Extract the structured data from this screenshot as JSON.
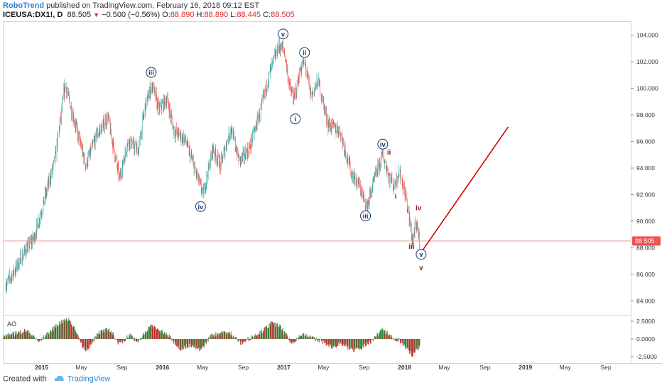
{
  "header": {
    "author": "RoboTrend",
    "published_text": "published on TradingView.com, February 16, 2018 09:12 EST",
    "symbol": "ICEUSA:DX1!, D",
    "last": "88.505",
    "change": "−0.500 (−0.56%)",
    "o_label": "O:",
    "o_value": "88.890",
    "h_label": "H:",
    "h_value": "88.890",
    "l_label": "L:",
    "l_value": "88.445",
    "c_label": "C:",
    "c_value": "88.505"
  },
  "footer": {
    "created_with": "Created with",
    "brand": "TradingView"
  },
  "colors": {
    "up": "#26a69a",
    "down": "#ef5350",
    "ao_up": "#2e8b3d",
    "ao_down": "#c62828",
    "projection": "#d00000",
    "wave_circle": "#1a3a6b",
    "wave_roman": "#8b1a1a",
    "price_label_bg": "#ef5350"
  },
  "chart_data": {
    "type": "candlestick",
    "symbol": "ICEUSA:DX1!",
    "interval": "D",
    "ylim": [
      83,
      105
    ],
    "y_ticks": [
      "84.000",
      "86.000",
      "88.000",
      "90.000",
      "92.000",
      "94.000",
      "96.000",
      "98.000",
      "100.000",
      "102.000",
      "104.000"
    ],
    "y_tick_values": [
      84,
      86,
      88,
      90,
      92,
      94,
      96,
      98,
      100,
      102,
      104
    ],
    "x_ticks": [
      "2015",
      "May",
      "Sep",
      "2016",
      "May",
      "Sep",
      "2017",
      "May",
      "Sep",
      "2018",
      "May",
      "Sep",
      "2019",
      "May",
      "Sep"
    ],
    "x_tick_values": [
      "2015-01-01",
      "2015-05-01",
      "2015-09-01",
      "2016-01-01",
      "2016-05-01",
      "2016-09-01",
      "2017-01-01",
      "2017-05-01",
      "2017-09-01",
      "2018-01-01",
      "2018-05-01",
      "2018-09-01",
      "2019-01-01",
      "2019-05-01",
      "2019-09-01"
    ],
    "x_tick_bold": [
      true,
      false,
      false,
      true,
      false,
      false,
      true,
      false,
      false,
      true,
      false,
      false,
      true,
      false,
      false
    ],
    "x_range": [
      "2014-09-08",
      "2019-11-15"
    ],
    "last_price": 88.505,
    "last_price_label": "88.505",
    "price_path": [
      [
        "2014-09-15",
        85.2
      ],
      [
        "2014-10-10",
        86.2
      ],
      [
        "2014-11-05",
        87.5
      ],
      [
        "2014-12-10",
        88.8
      ],
      [
        "2015-01-05",
        91.2
      ],
      [
        "2015-02-10",
        94.6
      ],
      [
        "2015-03-13",
        100.3
      ],
      [
        "2015-04-01",
        98.4
      ],
      [
        "2015-05-15",
        94.2
      ],
      [
        "2015-06-15",
        96.4
      ],
      [
        "2015-07-20",
        97.8
      ],
      [
        "2015-08-24",
        93.2
      ],
      [
        "2015-09-20",
        96.1
      ],
      [
        "2015-10-20",
        95.3
      ],
      [
        "2015-11-10",
        98.7
      ],
      [
        "2015-12-01",
        100.3
      ],
      [
        "2015-12-20",
        98.4
      ],
      [
        "2016-01-15",
        99.2
      ],
      [
        "2016-02-05",
        96.8
      ],
      [
        "2016-03-10",
        96.1
      ],
      [
        "2016-04-01",
        94.4
      ],
      [
        "2016-05-03",
        92.0
      ],
      [
        "2016-06-01",
        95.5
      ],
      [
        "2016-06-24",
        94.2
      ],
      [
        "2016-07-25",
        97.0
      ],
      [
        "2016-08-20",
        94.5
      ],
      [
        "2016-09-20",
        95.5
      ],
      [
        "2016-10-25",
        98.5
      ],
      [
        "2016-11-20",
        101.2
      ],
      [
        "2016-12-15",
        103.1
      ],
      [
        "2017-01-01",
        103.0
      ],
      [
        "2017-01-20",
        100.0
      ],
      [
        "2017-02-02",
        99.2
      ],
      [
        "2017-02-20",
        101.4
      ],
      [
        "2017-03-05",
        102.0
      ],
      [
        "2017-03-25",
        99.4
      ],
      [
        "2017-04-15",
        100.6
      ],
      [
        "2017-05-15",
        97.3
      ],
      [
        "2017-06-20",
        96.8
      ],
      [
        "2017-07-25",
        93.6
      ],
      [
        "2017-08-20",
        92.5
      ],
      [
        "2017-09-08",
        91.0
      ],
      [
        "2017-10-05",
        93.4
      ],
      [
        "2017-10-27",
        95.0
      ],
      [
        "2017-11-15",
        93.4
      ],
      [
        "2017-12-01",
        92.6
      ],
      [
        "2017-12-15",
        93.8
      ],
      [
        "2018-01-05",
        91.8
      ],
      [
        "2018-01-25",
        88.5
      ],
      [
        "2018-02-02",
        89.5
      ],
      [
        "2018-02-10",
        89.4
      ],
      [
        "2018-02-16",
        88.5
      ]
    ],
    "projection_line": {
      "from": [
        "2018-02-16",
        87.5
      ],
      "to": [
        "2018-11-10",
        97.1
      ]
    },
    "wave_labels": [
      {
        "text": "v",
        "style": "circle",
        "date": "2016-12-30",
        "price": 104.1
      },
      {
        "text": "ii",
        "style": "circle",
        "date": "2017-03-05",
        "price": 102.7
      },
      {
        "text": "iii",
        "style": "circle",
        "date": "2015-11-28",
        "price": 101.2
      },
      {
        "text": "i",
        "style": "circle",
        "date": "2017-02-05",
        "price": 97.7
      },
      {
        "text": "iv",
        "style": "circle",
        "date": "2017-10-27",
        "price": 95.8
      },
      {
        "text": "iv",
        "style": "circle",
        "date": "2016-04-25",
        "price": 91.1
      },
      {
        "text": "iii",
        "style": "circle",
        "date": "2017-09-05",
        "price": 90.4
      },
      {
        "text": "v",
        "style": "circle",
        "date": "2018-02-20",
        "price": 87.5
      },
      {
        "text": "ii",
        "style": "roman",
        "date": "2017-11-15",
        "price": 95.2
      },
      {
        "text": "i",
        "style": "roman",
        "date": "2017-12-05",
        "price": 91.9
      },
      {
        "text": "iv",
        "style": "roman",
        "date": "2018-02-12",
        "price": 91.0
      },
      {
        "text": "iii",
        "style": "roman",
        "date": "2018-01-22",
        "price": 88.1
      },
      {
        "text": "v",
        "style": "roman",
        "date": "2018-02-20",
        "price": 86.5
      }
    ],
    "indicator": {
      "name": "AO",
      "ylim": [
        -3.3,
        3.3
      ],
      "y_ticks": [
        "2.5000",
        "0.0000",
        "-2.5000"
      ],
      "y_tick_values": [
        2.5,
        0,
        -2.5
      ],
      "path": [
        [
          "2014-09-08",
          0.3
        ],
        [
          "2014-11-15",
          1.2
        ],
        [
          "2014-12-25",
          -0.4
        ],
        [
          "2015-02-25",
          2.3
        ],
        [
          "2015-03-25",
          2.8
        ],
        [
          "2015-04-20",
          0.5
        ],
        [
          "2015-05-15",
          -1.9
        ],
        [
          "2015-06-20",
          0.9
        ],
        [
          "2015-07-25",
          1.3
        ],
        [
          "2015-08-25",
          -0.7
        ],
        [
          "2015-09-25",
          0.6
        ],
        [
          "2015-10-20",
          -0.5
        ],
        [
          "2015-11-25",
          1.9
        ],
        [
          "2015-12-20",
          1.3
        ],
        [
          "2016-01-25",
          0.2
        ],
        [
          "2016-02-25",
          -1.4
        ],
        [
          "2016-03-25",
          -0.8
        ],
        [
          "2016-04-25",
          -1.6
        ],
        [
          "2016-05-25",
          0.4
        ],
        [
          "2016-06-25",
          0.9
        ],
        [
          "2016-07-25",
          0.8
        ],
        [
          "2016-08-25",
          -0.6
        ],
        [
          "2016-09-25",
          0.2
        ],
        [
          "2016-10-25",
          1.0
        ],
        [
          "2016-11-25",
          2.2
        ],
        [
          "2016-12-20",
          1.8
        ],
        [
          "2017-01-25",
          -0.6
        ],
        [
          "2017-02-25",
          0.6
        ],
        [
          "2017-03-25",
          0.2
        ],
        [
          "2017-04-25",
          -0.3
        ],
        [
          "2017-05-25",
          -1.1
        ],
        [
          "2017-06-25",
          -0.7
        ],
        [
          "2017-07-25",
          -1.5
        ],
        [
          "2017-08-25",
          -1.3
        ],
        [
          "2017-09-25",
          -0.2
        ],
        [
          "2017-10-25",
          1.3
        ],
        [
          "2017-11-25",
          0.2
        ],
        [
          "2017-12-20",
          -0.3
        ],
        [
          "2018-01-25",
          -2.3
        ],
        [
          "2018-02-16",
          -1.0
        ]
      ]
    }
  }
}
